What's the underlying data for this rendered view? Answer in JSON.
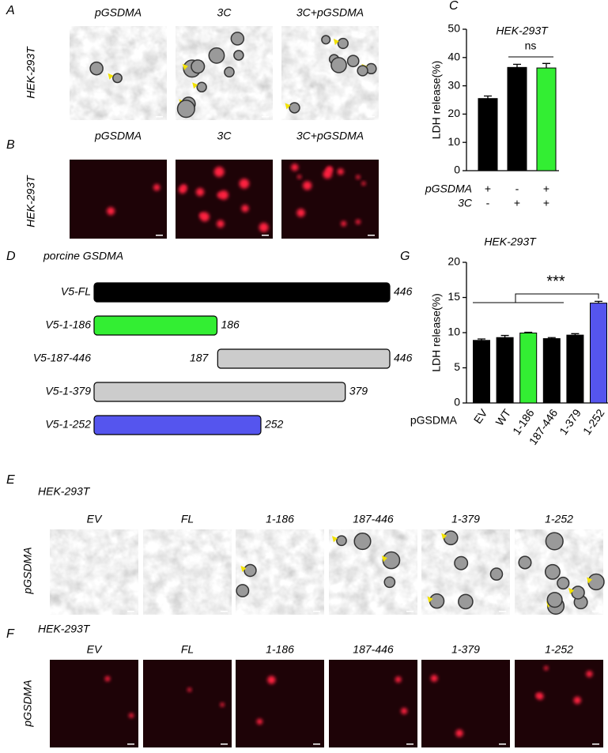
{
  "panel_labels": {
    "a": "A",
    "b": "B",
    "c": "C",
    "d": "D",
    "e": "E",
    "f": "F",
    "g": "G"
  },
  "panel_a": {
    "row_label": "HEK-293T",
    "columns": [
      "pGSDMA",
      "3C",
      "3C+pGSDMA"
    ]
  },
  "panel_b": {
    "row_label": "HEK-293T",
    "columns": [
      "pGSDMA",
      "3C",
      "3C+pGSDMA"
    ]
  },
  "panel_d": {
    "title": "porcine GSDMA",
    "range": [
      1,
      446
    ],
    "constructs": [
      {
        "name": "V5-FL",
        "end": 446,
        "color": "#000000"
      },
      {
        "name": "V5-1-186",
        "end": 186,
        "color": "#33ee33"
      },
      {
        "name": "V5-187-446",
        "start": 187,
        "end": 446,
        "color": "#cccccc"
      },
      {
        "name": "V5-1-379",
        "end": 379,
        "color": "#cccccc"
      },
      {
        "name": "V5-1-252",
        "end": 252,
        "color": "#5555ee"
      }
    ]
  },
  "panel_e": {
    "title": "HEK-293T",
    "row_label": "pGSDMA",
    "columns": [
      "EV",
      "FL",
      "1-186",
      "187-446",
      "1-379",
      "1-252"
    ]
  },
  "panel_f": {
    "title": "HEK-293T",
    "row_label": "pGSDMA",
    "columns": [
      "EV",
      "FL",
      "1-186",
      "187-446",
      "1-379",
      "1-252"
    ]
  },
  "chart_data": [
    {
      "type": "bar",
      "title": "HEK-293T",
      "y_label": "LDH release(%)",
      "values": [
        25.5,
        36.5,
        36.3
      ],
      "errors": [
        0.9,
        1.1,
        1.6
      ],
      "colors": [
        "#000000",
        "#000000",
        "#33ee33"
      ],
      "ylim": [
        0,
        50
      ],
      "yticks": [
        0,
        10,
        20,
        30,
        40,
        50
      ],
      "conditions": [
        {
          "name": "pGSDMA",
          "signs": [
            "+",
            "-",
            "+"
          ]
        },
        {
          "name": "3C",
          "signs": [
            "-",
            "+",
            "+"
          ]
        }
      ],
      "significance": "ns"
    },
    {
      "type": "bar",
      "title": "HEK-293T",
      "y_label": "LDH release(%)",
      "x_label": "pGSDMA",
      "categories": [
        "EV",
        "WT",
        "1-186",
        "187-446",
        "1-379",
        "1-252"
      ],
      "values": [
        8.9,
        9.3,
        9.95,
        9.15,
        9.65,
        14.2
      ],
      "errors": [
        0.2,
        0.3,
        0.1,
        0.15,
        0.2,
        0.25
      ],
      "colors": [
        "#000000",
        "#000000",
        "#33ee33",
        "#000000",
        "#000000",
        "#5555ee"
      ],
      "ylim": [
        0,
        20
      ],
      "yticks": [
        0,
        5,
        10,
        15,
        20
      ],
      "significance": "***"
    }
  ]
}
